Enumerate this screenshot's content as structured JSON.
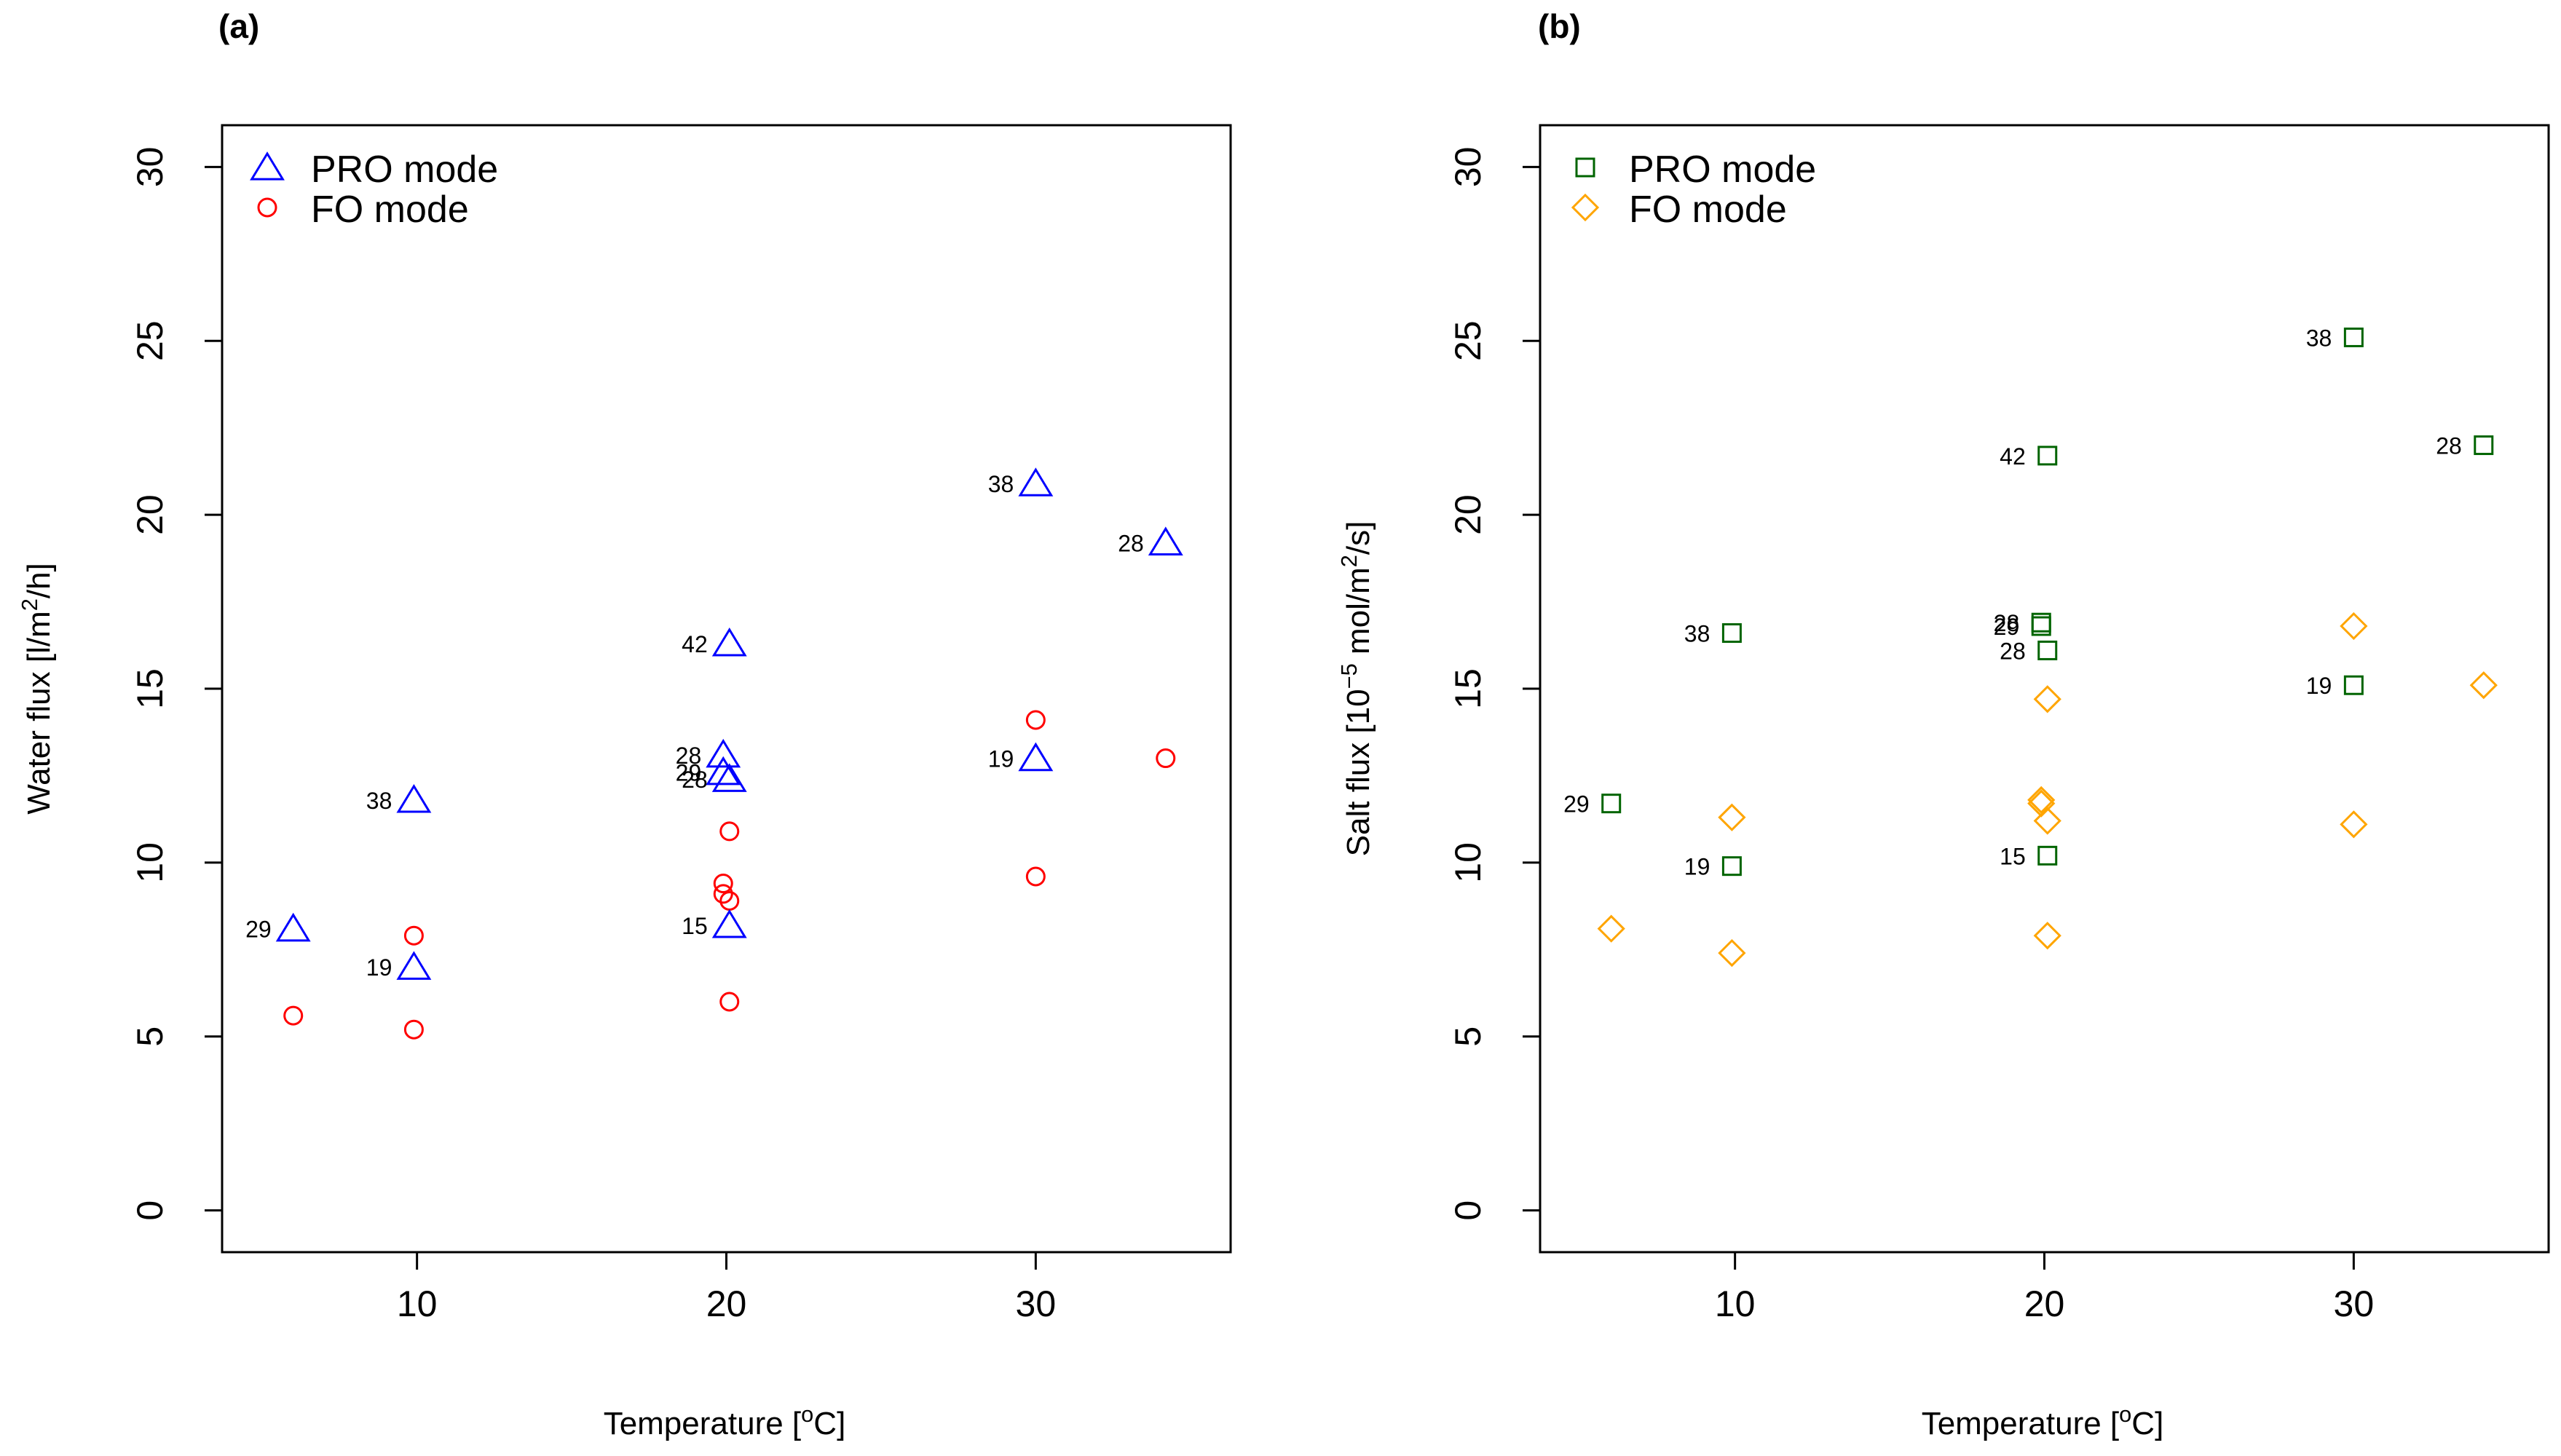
{
  "colors": {
    "pro_a": "#0000ff",
    "fo_a": "#ff0000",
    "pro_b": "#006400",
    "fo_b": "#ffa500"
  },
  "chart_data": [
    {
      "type": "scatter",
      "panel_label": "(a)",
      "title": "",
      "xlabel": "Temperature [°C]",
      "ylabel": "Water flux [l/m²/h]",
      "xlim": [
        3.7,
        36.3
      ],
      "ylim": [
        -1.2,
        31.2
      ],
      "xticks": [
        10,
        20,
        30
      ],
      "yticks": [
        0,
        5,
        10,
        15,
        20,
        25,
        30
      ],
      "legend_position": "top-left",
      "series": [
        {
          "name": "PRO mode",
          "marker": "triangle",
          "color": "#0000ff",
          "points": [
            {
              "x": 6,
              "y": 8.1,
              "label": "29"
            },
            {
              "x": 9.9,
              "y": 11.8,
              "label": "38"
            },
            {
              "x": 9.9,
              "y": 7.0,
              "label": "19"
            },
            {
              "x": 20.1,
              "y": 16.3,
              "label": "42"
            },
            {
              "x": 19.9,
              "y": 13.1,
              "label": "28"
            },
            {
              "x": 19.9,
              "y": 12.6,
              "label": "29"
            },
            {
              "x": 20.1,
              "y": 12.4,
              "label": "28"
            },
            {
              "x": 20.1,
              "y": 8.2,
              "label": "15"
            },
            {
              "x": 30,
              "y": 20.9,
              "label": "38"
            },
            {
              "x": 30,
              "y": 13.0,
              "label": "19"
            },
            {
              "x": 34.2,
              "y": 19.2,
              "label": "28"
            }
          ]
        },
        {
          "name": "FO mode",
          "marker": "circle",
          "color": "#ff0000",
          "points": [
            {
              "x": 6,
              "y": 5.6
            },
            {
              "x": 9.9,
              "y": 7.9
            },
            {
              "x": 9.9,
              "y": 5.2
            },
            {
              "x": 20.1,
              "y": 10.9
            },
            {
              "x": 19.9,
              "y": 9.4
            },
            {
              "x": 19.9,
              "y": 9.1
            },
            {
              "x": 20.1,
              "y": 8.9
            },
            {
              "x": 20.1,
              "y": 6.0
            },
            {
              "x": 30,
              "y": 14.1
            },
            {
              "x": 30,
              "y": 9.6
            },
            {
              "x": 34.2,
              "y": 13.0
            }
          ]
        }
      ]
    },
    {
      "type": "scatter",
      "panel_label": "(b)",
      "title": "",
      "xlabel": "Temperature [°C]",
      "ylabel": "Salt flux [10⁻⁵ mol/m²/s]",
      "xlim": [
        3.7,
        36.3
      ],
      "ylim": [
        -1.2,
        31.2
      ],
      "xticks": [
        10,
        20,
        30
      ],
      "yticks": [
        0,
        5,
        10,
        15,
        20,
        25,
        30
      ],
      "legend_position": "top-left",
      "series": [
        {
          "name": "PRO mode",
          "marker": "square",
          "color": "#006400",
          "points": [
            {
              "x": 6,
              "y": 11.7,
              "label": "29"
            },
            {
              "x": 9.9,
              "y": 16.6,
              "label": "38"
            },
            {
              "x": 9.9,
              "y": 9.9,
              "label": "19"
            },
            {
              "x": 20.1,
              "y": 21.7,
              "label": "42"
            },
            {
              "x": 19.9,
              "y": 16.9,
              "label": "28"
            },
            {
              "x": 19.9,
              "y": 16.8,
              "label": "29"
            },
            {
              "x": 20.1,
              "y": 16.1,
              "label": "28"
            },
            {
              "x": 20.1,
              "y": 10.2,
              "label": "15"
            },
            {
              "x": 30,
              "y": 25.1,
              "label": "38"
            },
            {
              "x": 30,
              "y": 15.1,
              "label": "19"
            },
            {
              "x": 34.2,
              "y": 22.0,
              "label": "28"
            }
          ]
        },
        {
          "name": "FO mode",
          "marker": "diamond",
          "color": "#ffa500",
          "points": [
            {
              "x": 6,
              "y": 8.1
            },
            {
              "x": 9.9,
              "y": 11.3
            },
            {
              "x": 9.9,
              "y": 7.4
            },
            {
              "x": 20.1,
              "y": 14.7
            },
            {
              "x": 19.9,
              "y": 11.8
            },
            {
              "x": 19.9,
              "y": 11.7
            },
            {
              "x": 20.1,
              "y": 11.2
            },
            {
              "x": 20.1,
              "y": 7.9
            },
            {
              "x": 30,
              "y": 16.8
            },
            {
              "x": 30,
              "y": 11.1
            },
            {
              "x": 34.2,
              "y": 15.1
            }
          ]
        }
      ]
    }
  ]
}
